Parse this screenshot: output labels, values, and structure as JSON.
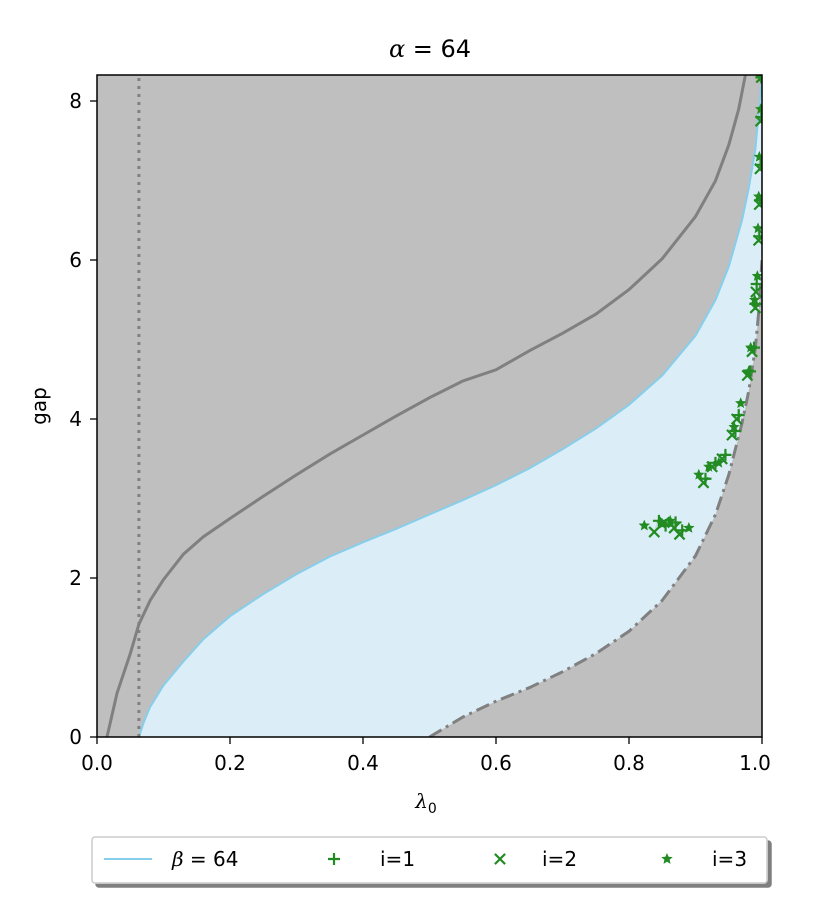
{
  "chart_data": {
    "type": "line",
    "title": {
      "symbol": "α",
      "rest": " = 64"
    },
    "xlabel": {
      "symbol": "λ",
      "sub": "0"
    },
    "ylabel": "gap",
    "xlim": [
      0.0,
      1.0
    ],
    "ylim": [
      0.0,
      8.33
    ],
    "x_ticks": [
      "0.0",
      "0.2",
      "0.4",
      "0.6",
      "0.8",
      "1.0"
    ],
    "y_ticks": [
      "0",
      "2",
      "4",
      "6",
      "8"
    ],
    "x_tick_values": [
      0.0,
      0.2,
      0.4,
      0.6,
      0.8,
      1.0
    ],
    "y_tick_values": [
      0,
      2,
      4,
      6,
      8
    ],
    "vline_x": 0.063,
    "colors": {
      "grey_region": "#bfbfbf",
      "blue_fill": "#dbeef8",
      "blue_line": "#87ceeb",
      "grey_line": "#808080",
      "green": "#228b22"
    },
    "upper_curve": [
      [
        0.015,
        0.0
      ],
      [
        0.03,
        0.55
      ],
      [
        0.05,
        1.05
      ],
      [
        0.063,
        1.42
      ],
      [
        0.08,
        1.72
      ],
      [
        0.1,
        1.98
      ],
      [
        0.13,
        2.3
      ],
      [
        0.16,
        2.52
      ],
      [
        0.2,
        2.75
      ],
      [
        0.25,
        3.03
      ],
      [
        0.3,
        3.3
      ],
      [
        0.35,
        3.56
      ],
      [
        0.4,
        3.8
      ],
      [
        0.45,
        4.04
      ],
      [
        0.5,
        4.27
      ],
      [
        0.55,
        4.48
      ],
      [
        0.6,
        4.62
      ],
      [
        0.65,
        4.86
      ],
      [
        0.7,
        5.08
      ],
      [
        0.75,
        5.32
      ],
      [
        0.8,
        5.63
      ],
      [
        0.85,
        6.02
      ],
      [
        0.9,
        6.55
      ],
      [
        0.93,
        7.0
      ],
      [
        0.95,
        7.45
      ],
      [
        0.965,
        7.9
      ],
      [
        0.975,
        8.33
      ]
    ],
    "blue_curve": [
      [
        0.063,
        0.0
      ],
      [
        0.07,
        0.18
      ],
      [
        0.08,
        0.38
      ],
      [
        0.1,
        0.65
      ],
      [
        0.13,
        0.95
      ],
      [
        0.16,
        1.23
      ],
      [
        0.2,
        1.52
      ],
      [
        0.25,
        1.8
      ],
      [
        0.3,
        2.05
      ],
      [
        0.35,
        2.27
      ],
      [
        0.4,
        2.45
      ],
      [
        0.45,
        2.62
      ],
      [
        0.5,
        2.8
      ],
      [
        0.55,
        2.98
      ],
      [
        0.6,
        3.17
      ],
      [
        0.65,
        3.38
      ],
      [
        0.7,
        3.62
      ],
      [
        0.75,
        3.88
      ],
      [
        0.8,
        4.18
      ],
      [
        0.85,
        4.55
      ],
      [
        0.9,
        5.05
      ],
      [
        0.93,
        5.5
      ],
      [
        0.95,
        5.92
      ],
      [
        0.97,
        6.5
      ],
      [
        0.98,
        6.9
      ],
      [
        0.99,
        7.4
      ],
      [
        0.995,
        7.85
      ],
      [
        1.0,
        8.33
      ]
    ],
    "lower_dashdot_curve": [
      [
        0.5,
        0.0
      ],
      [
        0.55,
        0.25
      ],
      [
        0.6,
        0.45
      ],
      [
        0.65,
        0.62
      ],
      [
        0.7,
        0.82
      ],
      [
        0.75,
        1.05
      ],
      [
        0.8,
        1.33
      ],
      [
        0.85,
        1.72
      ],
      [
        0.9,
        2.28
      ],
      [
        0.93,
        2.8
      ],
      [
        0.95,
        3.3
      ],
      [
        0.97,
        3.95
      ],
      [
        0.98,
        4.35
      ],
      [
        0.99,
        4.9
      ],
      [
        0.995,
        5.35
      ],
      [
        1.0,
        6.0
      ]
    ],
    "legend_position": "below",
    "legend": [
      {
        "label_symbol": "β",
        "label_rest": " = 64",
        "marker": "line"
      },
      {
        "label": "i=1",
        "marker": "plus"
      },
      {
        "label": "i=2",
        "marker": "x"
      },
      {
        "label": "i=3",
        "marker": "star"
      }
    ],
    "series": [
      {
        "name": "i=1",
        "marker": "plus",
        "points": [
          [
            0.845,
            2.72
          ],
          [
            0.855,
            2.66
          ],
          [
            0.87,
            2.7
          ],
          [
            0.88,
            2.6
          ],
          [
            0.915,
            3.25
          ],
          [
            0.93,
            3.45
          ],
          [
            0.945,
            3.55
          ],
          [
            0.96,
            3.85
          ],
          [
            0.965,
            4.05
          ],
          [
            0.982,
            4.6
          ],
          [
            0.988,
            4.9
          ],
          [
            0.99,
            5.45
          ],
          [
            0.992,
            5.7
          ],
          [
            0.996,
            6.3
          ],
          [
            0.997,
            6.75
          ],
          [
            0.998,
            7.2
          ],
          [
            0.999,
            7.8
          ],
          [
            0.999,
            8.3
          ]
        ]
      },
      {
        "name": "i=2",
        "marker": "x",
        "points": [
          [
            0.838,
            2.58
          ],
          [
            0.853,
            2.7
          ],
          [
            0.868,
            2.63
          ],
          [
            0.876,
            2.55
          ],
          [
            0.912,
            3.2
          ],
          [
            0.925,
            3.4
          ],
          [
            0.94,
            3.5
          ],
          [
            0.955,
            3.8
          ],
          [
            0.962,
            4.0
          ],
          [
            0.978,
            4.55
          ],
          [
            0.985,
            4.85
          ],
          [
            0.99,
            5.4
          ],
          [
            0.991,
            5.6
          ],
          [
            0.995,
            6.25
          ],
          [
            0.996,
            6.7
          ],
          [
            0.997,
            7.15
          ],
          [
            0.998,
            7.75
          ],
          [
            0.999,
            8.3
          ]
        ]
      },
      {
        "name": "i=3",
        "marker": "star",
        "points": [
          [
            0.823,
            2.66
          ],
          [
            0.85,
            2.68
          ],
          [
            0.862,
            2.72
          ],
          [
            0.89,
            2.63
          ],
          [
            0.905,
            3.3
          ],
          [
            0.92,
            3.4
          ],
          [
            0.935,
            3.45
          ],
          [
            0.958,
            3.9
          ],
          [
            0.968,
            4.2
          ],
          [
            0.98,
            4.6
          ],
          [
            0.983,
            4.9
          ],
          [
            0.989,
            5.5
          ],
          [
            0.993,
            5.8
          ],
          [
            0.994,
            6.4
          ],
          [
            0.995,
            6.8
          ],
          [
            0.996,
            7.3
          ],
          [
            0.998,
            7.9
          ],
          [
            0.999,
            8.3
          ]
        ]
      }
    ]
  }
}
